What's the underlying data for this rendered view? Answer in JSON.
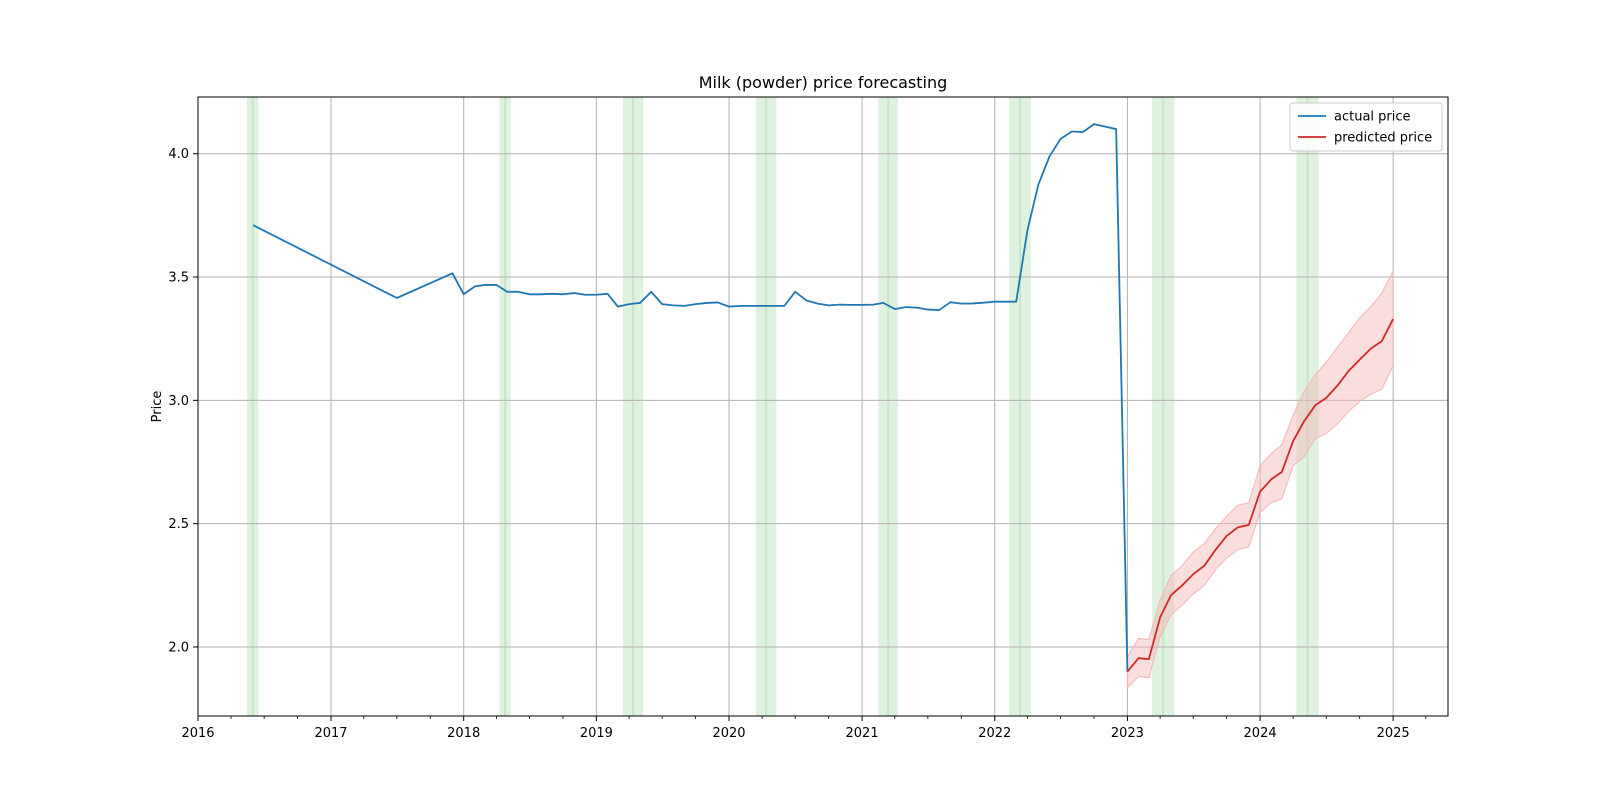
{
  "chart_data": {
    "type": "line",
    "title": "Milk (powder) price forecasting",
    "xlabel": "",
    "ylabel": "Price",
    "xlim": [
      "2016-01-01",
      "2025-06-01"
    ],
    "ylim": [
      1.72,
      4.23
    ],
    "x_ticks": [
      "2016",
      "2017",
      "2018",
      "2019",
      "2020",
      "2021",
      "2022",
      "2023",
      "2024",
      "2025"
    ],
    "y_ticks": [
      2.0,
      2.5,
      3.0,
      3.5,
      4.0
    ],
    "y_tick_labels": [
      "2.0",
      "2.5",
      "3.0",
      "3.5",
      "4.0"
    ],
    "grid": true,
    "legend": {
      "position": "top-right",
      "entries": [
        "actual price",
        "predicted price"
      ]
    },
    "colors": {
      "actual": "#1f77b4",
      "predicted": "#d62728",
      "band": "#f4b6b6",
      "highlight": "#b8e0b8"
    },
    "highlight_periods": [
      [
        "2016-05-15",
        "2016-06-15"
      ],
      [
        "2018-04-10",
        "2018-05-10"
      ],
      [
        "2019-03-15",
        "2019-05-10"
      ],
      [
        "2020-03-15",
        "2020-05-10"
      ],
      [
        "2021-02-15",
        "2021-04-10"
      ],
      [
        "2022-02-10",
        "2022-04-10"
      ],
      [
        "2023-03-10",
        "2023-05-10"
      ],
      [
        "2024-04-10",
        "2024-06-10"
      ]
    ],
    "series": [
      {
        "name": "actual price",
        "x": [
          "2016-06-01",
          "2017-07-01",
          "2017-12-01",
          "2018-01-01",
          "2018-02-01",
          "2018-03-01",
          "2018-04-01",
          "2018-05-01",
          "2018-06-01",
          "2018-07-01",
          "2018-08-01",
          "2018-09-01",
          "2018-10-01",
          "2018-11-01",
          "2018-12-01",
          "2019-01-01",
          "2019-02-01",
          "2019-03-01",
          "2019-04-01",
          "2019-05-01",
          "2019-06-01",
          "2019-07-01",
          "2019-08-01",
          "2019-09-01",
          "2019-10-01",
          "2019-11-01",
          "2019-12-01",
          "2020-01-01",
          "2020-02-01",
          "2020-03-01",
          "2020-04-01",
          "2020-05-01",
          "2020-06-01",
          "2020-07-01",
          "2020-08-01",
          "2020-09-01",
          "2020-10-01",
          "2020-11-01",
          "2020-12-01",
          "2021-01-01",
          "2021-02-01",
          "2021-03-01",
          "2021-04-01",
          "2021-05-01",
          "2021-06-01",
          "2021-07-01",
          "2021-08-01",
          "2021-09-01",
          "2021-10-01",
          "2021-11-01",
          "2021-12-01",
          "2022-01-01",
          "2022-02-01",
          "2022-03-01",
          "2022-04-01",
          "2022-05-01",
          "2022-06-01",
          "2022-07-01",
          "2022-08-01",
          "2022-09-01",
          "2022-10-01",
          "2022-11-01",
          "2022-12-01",
          "2023-01-01"
        ],
        "values": [
          3.71,
          3.415,
          3.515,
          3.43,
          3.462,
          3.468,
          3.468,
          3.44,
          3.44,
          3.43,
          3.43,
          3.432,
          3.43,
          3.435,
          3.428,
          3.428,
          3.432,
          3.38,
          3.39,
          3.395,
          3.44,
          3.39,
          3.385,
          3.383,
          3.39,
          3.395,
          3.397,
          3.38,
          3.383,
          3.383,
          3.383,
          3.383,
          3.383,
          3.44,
          3.405,
          3.392,
          3.385,
          3.388,
          3.387,
          3.387,
          3.388,
          3.395,
          3.37,
          3.378,
          3.376,
          3.368,
          3.366,
          3.398,
          3.392,
          3.393,
          3.396,
          3.4,
          3.4,
          3.4,
          3.69,
          3.875,
          3.99,
          4.06,
          4.09,
          4.088,
          4.12,
          4.11,
          4.1,
          1.9
        ]
      },
      {
        "name": "predicted price",
        "x": [
          "2023-01-01",
          "2023-02-01",
          "2023-03-01",
          "2023-04-01",
          "2023-05-01",
          "2023-06-01",
          "2023-07-01",
          "2023-08-01",
          "2023-09-01",
          "2023-10-01",
          "2023-11-01",
          "2023-12-01",
          "2024-01-01",
          "2024-02-01",
          "2024-03-01",
          "2024-04-01",
          "2024-05-01",
          "2024-06-01",
          "2024-07-01",
          "2024-08-01",
          "2024-09-01",
          "2024-10-01",
          "2024-11-01",
          "2024-12-01",
          "2025-01-01"
        ],
        "values": [
          1.9,
          1.955,
          1.95,
          2.12,
          2.21,
          2.25,
          2.295,
          2.33,
          2.395,
          2.45,
          2.485,
          2.495,
          2.63,
          2.68,
          2.71,
          2.835,
          2.915,
          2.98,
          3.01,
          3.06,
          3.12,
          3.165,
          3.21,
          3.24,
          3.33
        ],
        "lower": [
          1.835,
          1.88,
          1.875,
          2.04,
          2.13,
          2.17,
          2.215,
          2.25,
          2.315,
          2.36,
          2.395,
          2.405,
          2.545,
          2.585,
          2.6,
          2.735,
          2.77,
          2.845,
          2.865,
          2.905,
          2.955,
          2.995,
          3.025,
          3.045,
          3.14
        ],
        "upper": [
          1.96,
          2.035,
          2.03,
          2.19,
          2.29,
          2.33,
          2.385,
          2.42,
          2.48,
          2.53,
          2.575,
          2.585,
          2.735,
          2.785,
          2.82,
          2.94,
          3.035,
          3.105,
          3.155,
          3.215,
          3.275,
          3.335,
          3.38,
          3.435,
          3.525
        ]
      }
    ]
  }
}
